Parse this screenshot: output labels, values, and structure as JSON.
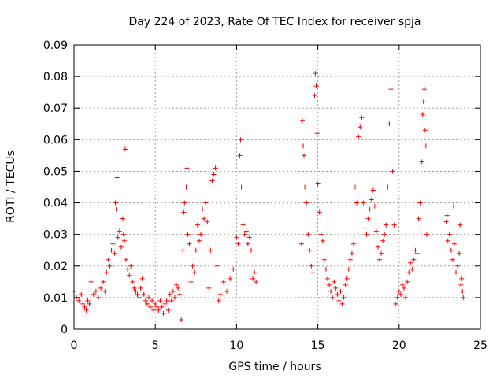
{
  "chart_data": {
    "type": "scatter",
    "title": "Day 224 of 2023, Rate Of TEC Index for receiver spja",
    "xlabel": "GPS time / hours",
    "ylabel": "ROTI / TECUs",
    "xlim": [
      0,
      25
    ],
    "ylim": [
      0,
      0.09
    ],
    "x_ticks": [
      "0",
      "5",
      "10",
      "15",
      "20",
      "25"
    ],
    "y_ticks": [
      "0",
      "0.01",
      "0.02",
      "0.03",
      "0.04",
      "0.05",
      "0.06",
      "0.07",
      "0.08",
      "0.09"
    ],
    "grid": true,
    "marker": "+",
    "color": "#ff0000",
    "series": [
      {
        "points": [
          [
            0.0,
            0.012
          ],
          [
            0.15,
            0.01
          ],
          [
            0.3,
            0.009
          ],
          [
            0.45,
            0.011
          ],
          [
            0.55,
            0.008
          ],
          [
            0.65,
            0.007
          ],
          [
            0.75,
            0.006
          ],
          [
            0.85,
            0.009
          ],
          [
            0.95,
            0.008
          ],
          [
            1.05,
            0.015
          ],
          [
            1.2,
            0.011
          ],
          [
            1.35,
            0.012
          ],
          [
            1.5,
            0.01
          ],
          [
            1.65,
            0.013
          ],
          [
            1.8,
            0.015
          ],
          [
            1.9,
            0.012
          ],
          [
            2.0,
            0.018
          ],
          [
            2.1,
            0.022
          ],
          [
            2.2,
            0.02
          ],
          [
            2.3,
            0.025
          ],
          [
            2.4,
            0.027
          ],
          [
            2.5,
            0.024
          ],
          [
            2.55,
            0.04
          ],
          [
            2.6,
            0.038
          ],
          [
            2.65,
            0.048
          ],
          [
            2.7,
            0.029
          ],
          [
            2.8,
            0.031
          ],
          [
            2.9,
            0.026
          ],
          [
            3.0,
            0.035
          ],
          [
            3.05,
            0.03
          ],
          [
            3.1,
            0.028
          ],
          [
            3.15,
            0.057
          ],
          [
            3.2,
            0.022
          ],
          [
            3.3,
            0.019
          ],
          [
            3.4,
            0.017
          ],
          [
            3.5,
            0.02
          ],
          [
            3.6,
            0.015
          ],
          [
            3.7,
            0.013
          ],
          [
            3.8,
            0.012
          ],
          [
            3.9,
            0.011
          ],
          [
            4.0,
            0.01
          ],
          [
            4.1,
            0.013
          ],
          [
            4.2,
            0.016
          ],
          [
            4.3,
            0.011
          ],
          [
            4.4,
            0.009
          ],
          [
            4.5,
            0.008
          ],
          [
            4.6,
            0.01
          ],
          [
            4.7,
            0.007
          ],
          [
            4.8,
            0.009
          ],
          [
            4.9,
            0.006
          ],
          [
            5.0,
            0.008
          ],
          [
            5.1,
            0.007
          ],
          [
            5.2,
            0.006
          ],
          [
            5.3,
            0.009
          ],
          [
            5.4,
            0.007
          ],
          [
            5.5,
            0.005
          ],
          [
            5.6,
            0.008
          ],
          [
            5.7,
            0.009
          ],
          [
            5.8,
            0.006
          ],
          [
            5.9,
            0.011
          ],
          [
            6.0,
            0.009
          ],
          [
            6.1,
            0.012
          ],
          [
            6.2,
            0.01
          ],
          [
            6.3,
            0.014
          ],
          [
            6.4,
            0.013
          ],
          [
            6.5,
            0.011
          ],
          [
            6.6,
            0.003
          ],
          [
            6.7,
            0.025
          ],
          [
            6.75,
            0.037
          ],
          [
            6.8,
            0.04
          ],
          [
            6.9,
            0.045
          ],
          [
            6.95,
            0.051
          ],
          [
            7.0,
            0.03
          ],
          [
            7.1,
            0.027
          ],
          [
            7.2,
            0.015
          ],
          [
            7.3,
            0.02
          ],
          [
            7.4,
            0.018
          ],
          [
            7.5,
            0.025
          ],
          [
            7.6,
            0.033
          ],
          [
            7.7,
            0.028
          ],
          [
            7.8,
            0.03
          ],
          [
            7.9,
            0.038
          ],
          [
            8.0,
            0.035
          ],
          [
            8.1,
            0.04
          ],
          [
            8.2,
            0.034
          ],
          [
            8.3,
            0.013
          ],
          [
            8.4,
            0.025
          ],
          [
            8.5,
            0.047
          ],
          [
            8.6,
            0.049
          ],
          [
            8.7,
            0.051
          ],
          [
            8.8,
            0.02
          ],
          [
            8.9,
            0.009
          ],
          [
            9.0,
            0.011
          ],
          [
            9.2,
            0.015
          ],
          [
            9.4,
            0.012
          ],
          [
            9.6,
            0.016
          ],
          [
            9.8,
            0.019
          ],
          [
            10.0,
            0.029
          ],
          [
            10.1,
            0.027
          ],
          [
            10.2,
            0.055
          ],
          [
            10.25,
            0.06
          ],
          [
            10.3,
            0.045
          ],
          [
            10.4,
            0.033
          ],
          [
            10.5,
            0.03
          ],
          [
            10.6,
            0.031
          ],
          [
            10.7,
            0.027
          ],
          [
            10.8,
            0.029
          ],
          [
            10.9,
            0.025
          ],
          [
            11.0,
            0.016
          ],
          [
            11.1,
            0.018
          ],
          [
            11.2,
            0.015
          ],
          [
            14.0,
            0.027
          ],
          [
            14.05,
            0.066
          ],
          [
            14.1,
            0.058
          ],
          [
            14.15,
            0.055
          ],
          [
            14.2,
            0.045
          ],
          [
            14.3,
            0.04
          ],
          [
            14.4,
            0.03
          ],
          [
            14.5,
            0.025
          ],
          [
            14.6,
            0.02
          ],
          [
            14.7,
            0.018
          ],
          [
            14.8,
            0.074
          ],
          [
            14.85,
            0.081
          ],
          [
            14.9,
            0.077
          ],
          [
            14.95,
            0.062
          ],
          [
            15.0,
            0.046
          ],
          [
            15.1,
            0.037
          ],
          [
            15.2,
            0.03
          ],
          [
            15.3,
            0.028
          ],
          [
            15.4,
            0.022
          ],
          [
            15.5,
            0.019
          ],
          [
            15.6,
            0.016
          ],
          [
            15.7,
            0.014
          ],
          [
            15.8,
            0.012
          ],
          [
            15.9,
            0.01
          ],
          [
            16.0,
            0.015
          ],
          [
            16.1,
            0.013
          ],
          [
            16.2,
            0.011
          ],
          [
            16.3,
            0.009
          ],
          [
            16.4,
            0.012
          ],
          [
            16.5,
            0.008
          ],
          [
            16.6,
            0.01
          ],
          [
            16.7,
            0.014
          ],
          [
            16.8,
            0.016
          ],
          [
            16.9,
            0.019
          ],
          [
            17.0,
            0.022
          ],
          [
            17.1,
            0.024
          ],
          [
            17.2,
            0.027
          ],
          [
            17.3,
            0.045
          ],
          [
            17.4,
            0.04
          ],
          [
            17.5,
            0.061
          ],
          [
            17.6,
            0.064
          ],
          [
            17.7,
            0.067
          ],
          [
            17.8,
            0.04
          ],
          [
            17.9,
            0.032
          ],
          [
            18.0,
            0.03
          ],
          [
            18.1,
            0.035
          ],
          [
            18.2,
            0.038
          ],
          [
            18.3,
            0.041
          ],
          [
            18.4,
            0.044
          ],
          [
            18.5,
            0.039
          ],
          [
            18.6,
            0.031
          ],
          [
            18.7,
            0.026
          ],
          [
            18.8,
            0.022
          ],
          [
            18.9,
            0.024
          ],
          [
            19.0,
            0.028
          ],
          [
            19.1,
            0.03
          ],
          [
            19.2,
            0.033
          ],
          [
            19.3,
            0.045
          ],
          [
            19.4,
            0.065
          ],
          [
            19.5,
            0.076
          ],
          [
            19.6,
            0.05
          ],
          [
            19.7,
            0.033
          ],
          [
            19.8,
            0.008
          ],
          [
            19.9,
            0.01
          ],
          [
            20.0,
            0.012
          ],
          [
            20.1,
            0.011
          ],
          [
            20.2,
            0.014
          ],
          [
            20.3,
            0.013
          ],
          [
            20.4,
            0.01
          ],
          [
            20.5,
            0.015
          ],
          [
            20.6,
            0.018
          ],
          [
            20.7,
            0.021
          ],
          [
            20.8,
            0.019
          ],
          [
            20.9,
            0.022
          ],
          [
            21.0,
            0.025
          ],
          [
            21.1,
            0.024
          ],
          [
            21.2,
            0.035
          ],
          [
            21.3,
            0.04
          ],
          [
            21.4,
            0.053
          ],
          [
            21.45,
            0.068
          ],
          [
            21.5,
            0.072
          ],
          [
            21.55,
            0.076
          ],
          [
            21.6,
            0.063
          ],
          [
            21.65,
            0.058
          ],
          [
            21.7,
            0.03
          ],
          [
            22.9,
            0.034
          ],
          [
            22.95,
            0.036
          ],
          [
            23.0,
            0.028
          ],
          [
            23.1,
            0.03
          ],
          [
            23.2,
            0.025
          ],
          [
            23.3,
            0.022
          ],
          [
            23.35,
            0.039
          ],
          [
            23.4,
            0.027
          ],
          [
            23.5,
            0.018
          ],
          [
            23.6,
            0.02
          ],
          [
            23.7,
            0.024
          ],
          [
            23.75,
            0.033
          ],
          [
            23.8,
            0.014
          ],
          [
            23.85,
            0.016
          ],
          [
            23.9,
            0.012
          ],
          [
            23.95,
            0.01
          ]
        ]
      }
    ]
  }
}
